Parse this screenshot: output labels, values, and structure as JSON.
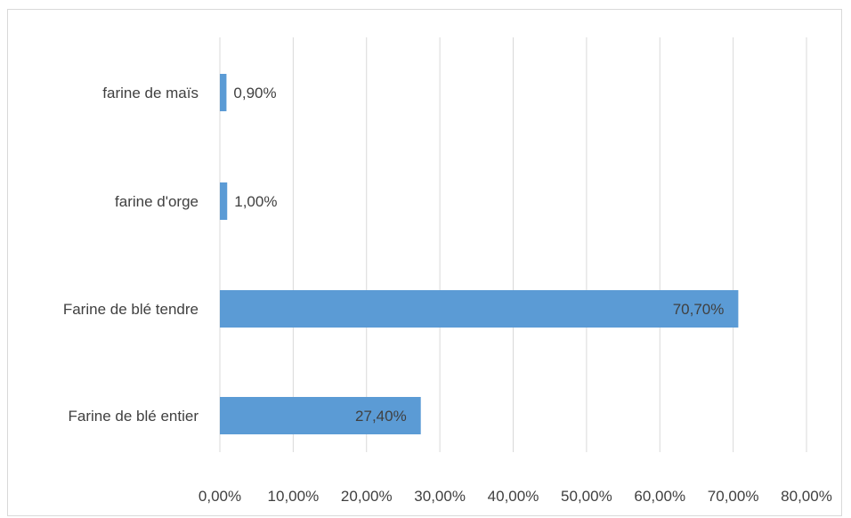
{
  "chart_data": {
    "type": "bar",
    "orientation": "horizontal",
    "title": "",
    "xlabel": "",
    "ylabel": "",
    "categories": [
      "farine de maïs",
      "farine d'orge",
      "Farine de blé tendre",
      "Farine de blé entier"
    ],
    "values": [
      0.9,
      1.0,
      70.7,
      27.4
    ],
    "data_labels": [
      "0,90%",
      "1,00%",
      "70,70%",
      "27,40%"
    ],
    "xlim": [
      0,
      80
    ],
    "ticks": [
      0,
      10,
      20,
      30,
      40,
      50,
      60,
      70,
      80
    ],
    "tick_labels": [
      "0,00%",
      "10,00%",
      "20,00%",
      "30,00%",
      "40,00%",
      "50,00%",
      "60,00%",
      "70,00%",
      "80,00%"
    ],
    "grid": true,
    "legend": "none",
    "bar_color": "#5b9bd5",
    "label_color": "#404040",
    "grid_color": "#d9d9d9"
  }
}
